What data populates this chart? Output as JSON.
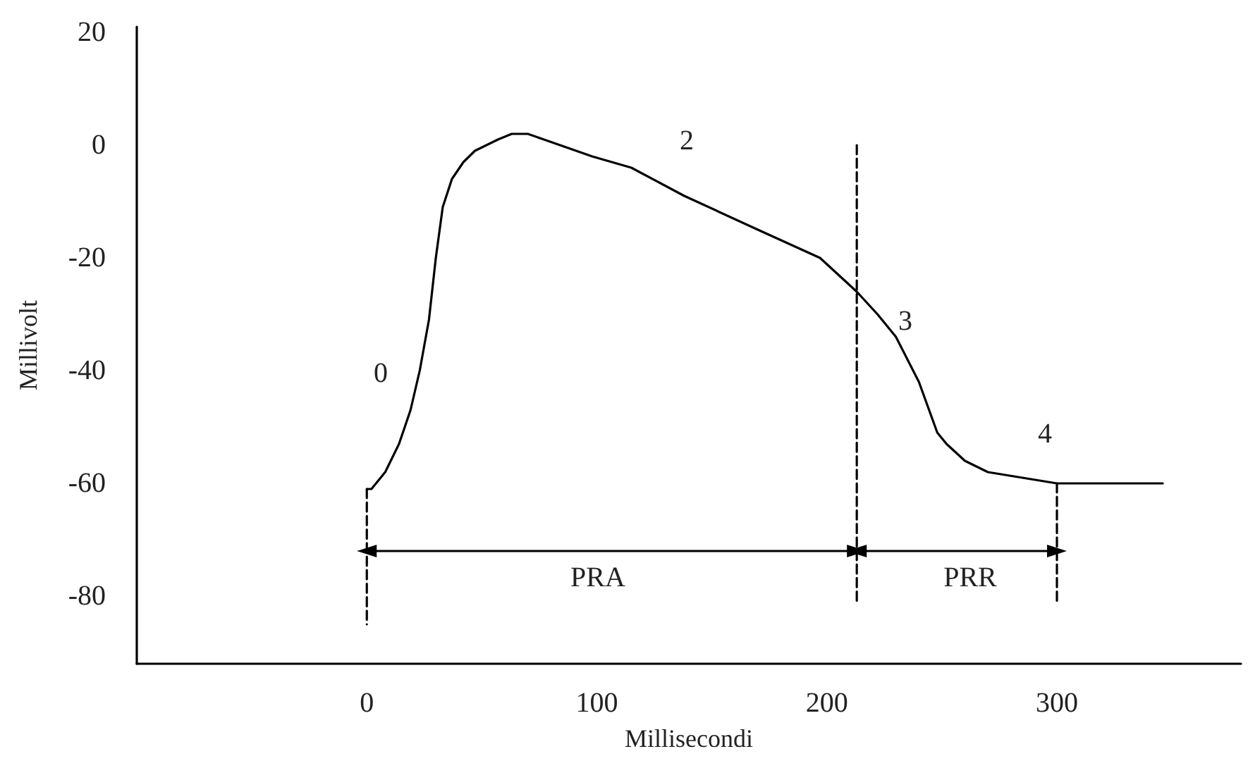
{
  "chart_data": {
    "type": "line",
    "xlabel": "Millisecondi",
    "ylabel": "Millivolt",
    "xlim": [
      -100,
      380
    ],
    "xticks": [
      0,
      100,
      200,
      300
    ],
    "ylim": [
      -92,
      21
    ],
    "yticks": [
      -80,
      -60,
      -40,
      -20,
      0,
      20
    ],
    "grid": false,
    "series": [
      {
        "color": "#000000",
        "marker": "none",
        "line_style": "solid",
        "x": [
          0,
          2,
          8,
          14,
          19,
          23,
          27,
          30,
          33,
          37,
          42,
          47,
          52,
          57,
          63,
          70,
          77,
          84,
          98,
          115,
          138,
          170,
          197,
          205,
          213,
          222,
          230,
          240,
          248,
          252,
          260,
          270,
          285,
          300,
          320,
          346
        ],
        "values": [
          -61,
          -61,
          -58,
          -53,
          -47,
          -40,
          -31,
          -20,
          -11,
          -6,
          -3,
          -1,
          0,
          1,
          2,
          2,
          1,
          0,
          -2,
          -4,
          -9,
          -15,
          -20,
          -23,
          -26,
          -30,
          -34,
          -42,
          -51,
          -53,
          -56,
          -58,
          -59,
          -60,
          -60,
          -60
        ]
      },
      {
        "color": "#000000",
        "marker": "none",
        "line_style": "dashed",
        "x": [
          0,
          0
        ],
        "values": [
          -61,
          -85
        ]
      },
      {
        "color": "#000000",
        "marker": "none",
        "line_style": "dashed",
        "x": [
          213,
          213
        ],
        "values": [
          0,
          -81
        ]
      },
      {
        "color": "#000000",
        "marker": "none",
        "line_style": "dashed",
        "x": [
          300,
          300
        ],
        "values": [
          -60,
          -81
        ]
      },
      {
        "color": "#000000",
        "marker": "triangle",
        "line_style": "solid",
        "x": [
          0,
          213
        ],
        "values": [
          -72,
          -72
        ]
      },
      {
        "color": "#000000",
        "marker": "triangle",
        "line_style": "solid",
        "x": [
          213,
          300
        ],
        "values": [
          -72,
          -72
        ]
      }
    ],
    "annotations": [
      "0",
      "2",
      "3",
      "4",
      "PRA",
      "PRR"
    ]
  }
}
